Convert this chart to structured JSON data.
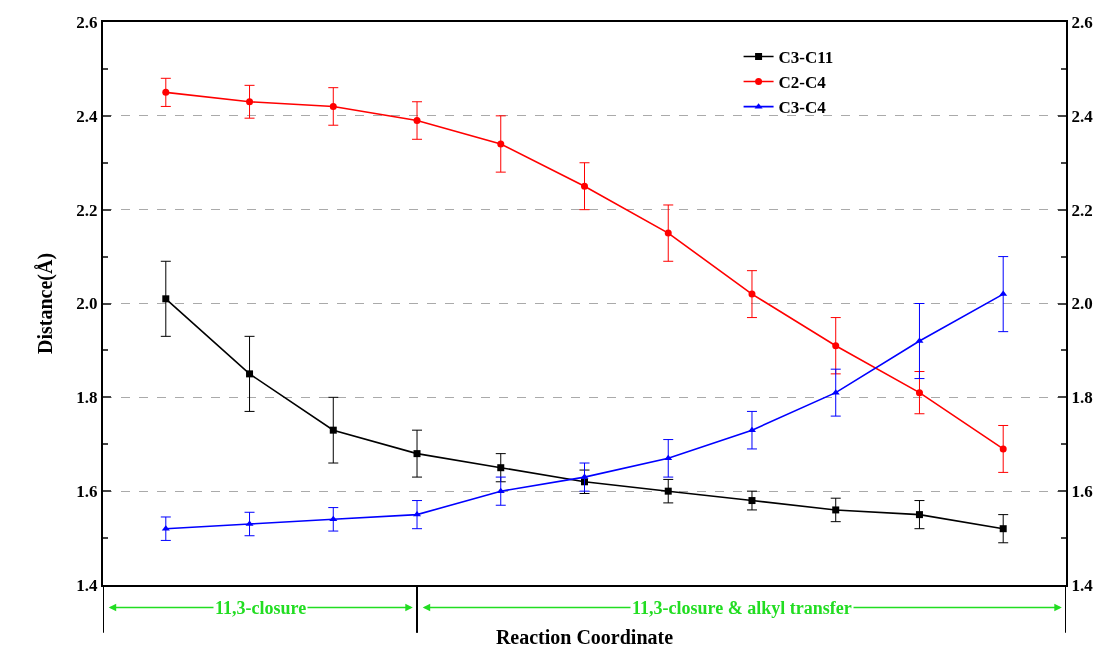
{
  "chart_data": {
    "type": "line",
    "xlabel": "Reaction Coordinate",
    "ylabel": "Distance(Å)",
    "categories": [
      null,
      null,
      null,
      null,
      null,
      null,
      null,
      null,
      null,
      null,
      null
    ],
    "series": [
      {
        "name": "C3-C11",
        "color": "#000000",
        "marker": "square",
        "values": [
          2.01,
          1.85,
          1.73,
          1.68,
          1.65,
          1.62,
          1.6,
          1.58,
          1.56,
          1.55,
          1.52
        ],
        "errors": [
          0.08,
          0.08,
          [
            1.66,
            1.8
          ],
          0.05,
          0.03,
          0.025,
          0.025,
          0.02,
          0.025,
          0.03,
          0.03
        ]
      },
      {
        "name": "C2-C4",
        "color": "#ff0000",
        "marker": "circle",
        "values": [
          2.45,
          2.43,
          2.42,
          2.39,
          2.34,
          2.25,
          2.15,
          2.02,
          1.91,
          1.81,
          1.69
        ],
        "errors": [
          0.03,
          0.035,
          0.04,
          0.04,
          0.06,
          0.05,
          0.06,
          0.05,
          0.06,
          0.045,
          0.05
        ]
      },
      {
        "name": "C3-C4",
        "color": "#0000ff",
        "marker": "triangle",
        "values": [
          1.52,
          1.53,
          1.54,
          1.55,
          1.6,
          1.63,
          1.67,
          1.73,
          1.81,
          1.92,
          2.02
        ],
        "errors": [
          0.025,
          0.025,
          0.025,
          0.03,
          0.03,
          0.03,
          0.04,
          0.04,
          0.05,
          0.08,
          0.08
        ]
      }
    ],
    "ylim": [
      1.4,
      2.6
    ],
    "yticks": [
      1.4,
      {
        "value": 1.5,
        "label": null
      },
      1.6,
      {
        "value": 1.7,
        "label": null
      },
      1.8,
      {
        "value": 1.9,
        "label": null
      },
      {
        "value": 2.0,
        "label": "2.0"
      },
      {
        "value": 2.1,
        "label": null
      },
      2.2,
      {
        "value": 2.3,
        "label": null
      },
      2.4,
      {
        "value": 2.5,
        "label": null
      },
      2.6
    ],
    "y2lim": [
      1.4,
      2.6
    ],
    "y2ticks": [
      1.4,
      {
        "value": 1.5,
        "label": null
      },
      1.6,
      {
        "value": 1.7,
        "label": null
      },
      1.8,
      {
        "value": 1.9,
        "label": null
      },
      {
        "value": 2.0,
        "label": "2.0"
      },
      {
        "value": 2.1,
        "label": null
      },
      2.2,
      {
        "value": 2.3,
        "label": null
      },
      2.4,
      {
        "value": 2.5,
        "label": null
      },
      2.6
    ],
    "annotations": [
      "11,3-closure",
      "11,3-closure & alkyl transfer"
    ],
    "grid": "y",
    "legend": "top right"
  }
}
